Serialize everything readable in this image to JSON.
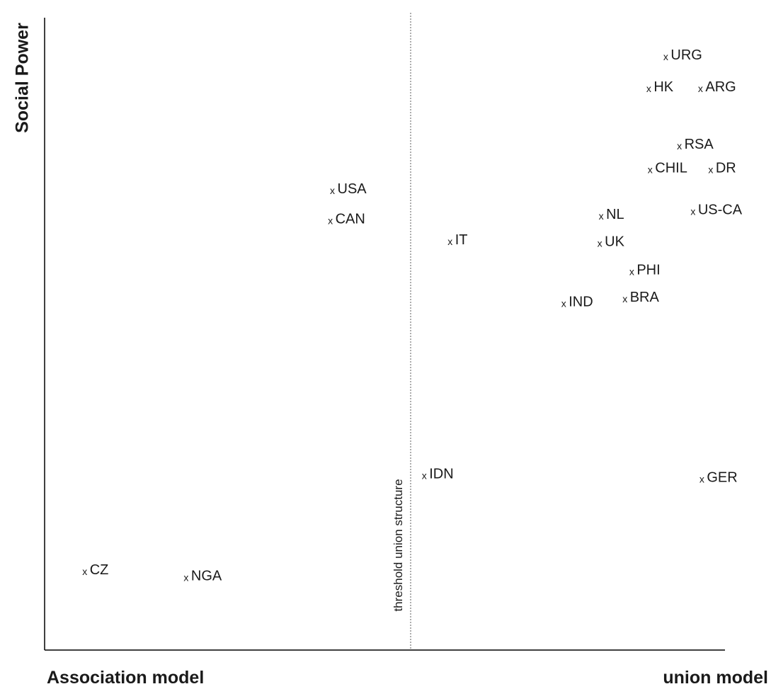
{
  "chart_data": {
    "type": "scatter",
    "title": "",
    "xlabel_left": "Association model",
    "xlabel_right": "union model",
    "ylabel": "Social Power",
    "threshold_label": "threshold union structure",
    "threshold_x": 53.8,
    "xlim": [
      0,
      100
    ],
    "ylim": [
      0,
      100
    ],
    "marker": "x",
    "grid": false,
    "points": [
      {
        "label": "URG",
        "x": 91.3,
        "y": 93.0
      },
      {
        "label": "HK",
        "x": 88.8,
        "y": 88.0
      },
      {
        "label": "ARG",
        "x": 96.4,
        "y": 88.0
      },
      {
        "label": "RSA",
        "x": 93.3,
        "y": 79.0
      },
      {
        "label": "CHIL",
        "x": 89.0,
        "y": 75.3
      },
      {
        "label": "DR",
        "x": 97.9,
        "y": 75.3
      },
      {
        "label": "USA",
        "x": 42.3,
        "y": 72.0
      },
      {
        "label": "NL",
        "x": 81.8,
        "y": 68.0
      },
      {
        "label": "US-CA",
        "x": 95.3,
        "y": 68.7
      },
      {
        "label": "CAN",
        "x": 42.0,
        "y": 67.3
      },
      {
        "label": "IT",
        "x": 59.6,
        "y": 64.0
      },
      {
        "label": "UK",
        "x": 81.6,
        "y": 63.7
      },
      {
        "label": "PHI",
        "x": 86.3,
        "y": 59.3
      },
      {
        "label": "BRA",
        "x": 85.3,
        "y": 55.0
      },
      {
        "label": "IND",
        "x": 76.3,
        "y": 54.3
      },
      {
        "label": "IDN",
        "x": 55.8,
        "y": 27.3
      },
      {
        "label": "GER",
        "x": 96.6,
        "y": 26.7
      },
      {
        "label": "CZ",
        "x": 5.9,
        "y": 12.2
      },
      {
        "label": "NGA",
        "x": 20.8,
        "y": 11.3
      }
    ]
  }
}
